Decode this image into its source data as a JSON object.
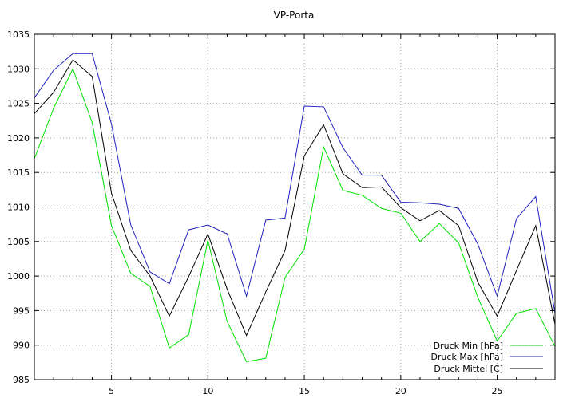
{
  "chart_data": {
    "type": "line",
    "title": "VP-Porta",
    "xlabel": "",
    "ylabel": "",
    "xlim": [
      1,
      28
    ],
    "ylim": [
      985,
      1035
    ],
    "xticks": [
      5,
      10,
      15,
      20,
      25
    ],
    "yticks": [
      985,
      990,
      995,
      1000,
      1005,
      1010,
      1015,
      1020,
      1025,
      1030,
      1035
    ],
    "grid": true,
    "legend_position": "bottom-right",
    "x": [
      1,
      2,
      3,
      4,
      5,
      6,
      7,
      8,
      9,
      10,
      11,
      12,
      13,
      14,
      15,
      16,
      17,
      18,
      19,
      20,
      21,
      22,
      23,
      24,
      25,
      26,
      27,
      28
    ],
    "series": [
      {
        "name": "Druck Min [hPa]",
        "color": "#00e000",
        "values": [
          1017.0,
          1024.3,
          1030.0,
          1022.2,
          1007.3,
          1000.4,
          998.5,
          989.6,
          991.5,
          1005.2,
          993.4,
          987.6,
          988.1,
          999.8,
          1003.9,
          1018.7,
          1012.4,
          1011.7,
          1009.8,
          1009.1,
          1005.0,
          1007.6,
          1004.8,
          996.9,
          990.6,
          994.6,
          995.3,
          989.8
        ]
      },
      {
        "name": "Druck Max [hPa]",
        "color": "#2020c0",
        "values": [
          1025.8,
          1029.8,
          1032.2,
          1032.2,
          1022.0,
          1007.4,
          1000.6,
          998.9,
          1006.7,
          1007.4,
          1006.1,
          997.1,
          1008.1,
          1008.4,
          1024.6,
          1024.5,
          1018.6,
          1014.6,
          1014.6,
          1010.7,
          1010.6,
          1010.4,
          1009.8,
          1004.6,
          997.1,
          1008.3,
          1011.5,
          994.6
        ]
      },
      {
        "name": "Druck Mittel [C]",
        "color": "#000000",
        "values": [
          1023.5,
          1026.6,
          1031.3,
          1028.9,
          1012.0,
          1003.7,
          1000.0,
          994.2,
          999.9,
          1006.1,
          998.1,
          991.4,
          997.7,
          1003.7,
          1017.4,
          1021.9,
          1014.8,
          1012.8,
          1012.9,
          1009.9,
          1008.0,
          1009.5,
          1007.3,
          999.1,
          994.2,
          1000.8,
          1007.3,
          993.0
        ]
      }
    ]
  }
}
